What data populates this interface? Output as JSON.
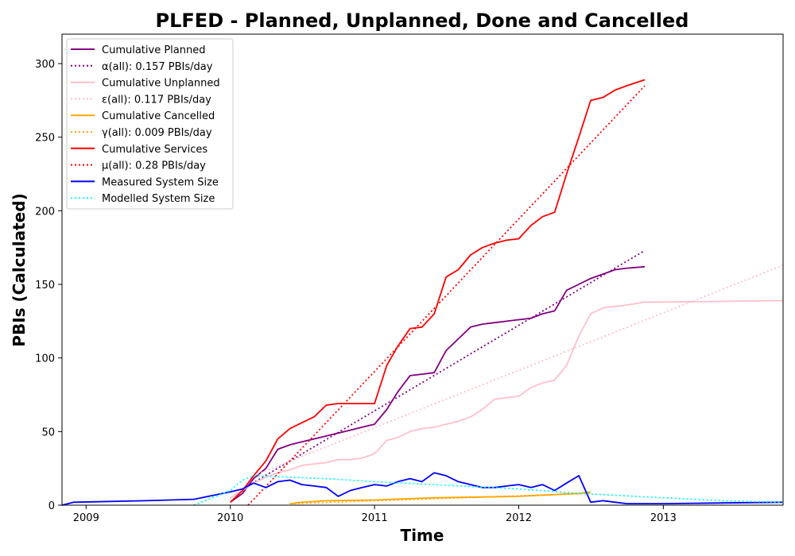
{
  "chart_data": {
    "type": "line",
    "title": "PLFED - Planned, Unplanned, Done  and Cancelled",
    "xlabel": "Time",
    "ylabel": "PBIs (Calculated)",
    "xlim": [
      "2008-11-01",
      "2013-10-31"
    ],
    "ylim": [
      0,
      320
    ],
    "x_ticks": [
      "2009",
      "2010",
      "2011",
      "2012",
      "2013"
    ],
    "x_tick_dates": [
      "2009-01-01",
      "2010-01-01",
      "2011-01-01",
      "2012-01-01",
      "2013-01-01"
    ],
    "y_ticks": [
      0,
      50,
      100,
      150,
      200,
      250,
      300
    ],
    "grid": false,
    "legend_position": "top-left",
    "series": [
      {
        "name": "Cumulative Planned",
        "color": "#800080",
        "style": "solid",
        "points": [
          [
            "2010-01-01",
            2
          ],
          [
            "2010-02-01",
            8
          ],
          [
            "2010-03-01",
            18
          ],
          [
            "2010-04-01",
            25
          ],
          [
            "2010-05-01",
            38
          ],
          [
            "2010-06-01",
            41
          ],
          [
            "2010-07-01",
            43
          ],
          [
            "2010-08-01",
            45
          ],
          [
            "2010-09-01",
            47
          ],
          [
            "2010-10-01",
            49
          ],
          [
            "2010-11-01",
            51
          ],
          [
            "2010-12-01",
            53
          ],
          [
            "2011-01-01",
            55
          ],
          [
            "2011-02-01",
            65
          ],
          [
            "2011-03-01",
            77
          ],
          [
            "2011-04-01",
            88
          ],
          [
            "2011-05-01",
            89
          ],
          [
            "2011-06-01",
            90
          ],
          [
            "2011-07-01",
            105
          ],
          [
            "2011-08-01",
            113
          ],
          [
            "2011-09-01",
            121
          ],
          [
            "2011-10-01",
            123
          ],
          [
            "2011-11-01",
            124
          ],
          [
            "2011-12-01",
            125
          ],
          [
            "2012-01-01",
            126
          ],
          [
            "2012-02-01",
            127
          ],
          [
            "2012-03-01",
            130
          ],
          [
            "2012-04-01",
            132
          ],
          [
            "2012-05-01",
            146
          ],
          [
            "2012-06-01",
            150
          ],
          [
            "2012-07-01",
            154
          ],
          [
            "2012-08-01",
            157
          ],
          [
            "2012-09-01",
            160
          ],
          [
            "2012-10-01",
            161
          ],
          [
            "2012-11-15",
            162
          ]
        ]
      },
      {
        "name": "α(all): 0.157 PBIs/day",
        "color": "#800080",
        "style": "dotted",
        "points": [
          [
            "2010-03-05",
            16
          ],
          [
            "2012-11-15",
            173
          ]
        ]
      },
      {
        "name": "Cumulative Unplanned",
        "color": "#ffc0cb",
        "style": "solid",
        "points": [
          [
            "2010-01-01",
            5
          ],
          [
            "2010-02-01",
            10
          ],
          [
            "2010-03-01",
            15
          ],
          [
            "2010-04-01",
            19
          ],
          [
            "2010-05-01",
            22
          ],
          [
            "2010-06-01",
            24
          ],
          [
            "2010-07-01",
            27
          ],
          [
            "2010-08-01",
            28
          ],
          [
            "2010-09-01",
            29
          ],
          [
            "2010-10-01",
            31
          ],
          [
            "2010-11-01",
            31
          ],
          [
            "2010-12-01",
            32
          ],
          [
            "2011-01-01",
            35
          ],
          [
            "2011-02-01",
            44
          ],
          [
            "2011-03-01",
            46
          ],
          [
            "2011-04-01",
            50
          ],
          [
            "2011-05-01",
            52
          ],
          [
            "2011-06-01",
            53
          ],
          [
            "2011-07-01",
            55
          ],
          [
            "2011-08-01",
            57
          ],
          [
            "2011-09-01",
            60
          ],
          [
            "2011-10-01",
            65
          ],
          [
            "2011-11-01",
            72
          ],
          [
            "2011-12-01",
            73
          ],
          [
            "2012-01-01",
            74
          ],
          [
            "2012-02-01",
            80
          ],
          [
            "2012-03-01",
            83
          ],
          [
            "2012-04-01",
            85
          ],
          [
            "2012-05-01",
            95
          ],
          [
            "2012-06-01",
            115
          ],
          [
            "2012-07-01",
            130
          ],
          [
            "2012-08-01",
            134
          ],
          [
            "2012-09-01",
            135
          ],
          [
            "2012-10-01",
            136
          ],
          [
            "2012-11-15",
            138
          ],
          [
            "2013-01-01",
            138
          ],
          [
            "2013-10-31",
            139
          ]
        ]
      },
      {
        "name": "ε(all): 0.117 PBIs/day",
        "color": "#ffc0cb",
        "style": "dotted",
        "points": [
          [
            "2010-03-01",
            20
          ],
          [
            "2013-10-31",
            163
          ]
        ]
      },
      {
        "name": "Cumulative Cancelled",
        "color": "#ffa500",
        "style": "solid",
        "points": [
          [
            "2010-06-01",
            1
          ],
          [
            "2010-07-01",
            2
          ],
          [
            "2010-09-01",
            3
          ],
          [
            "2011-01-01",
            3.5
          ],
          [
            "2011-06-01",
            5
          ],
          [
            "2012-01-01",
            6
          ],
          [
            "2012-06-01",
            8
          ],
          [
            "2012-07-01",
            9
          ]
        ]
      },
      {
        "name": "γ(all): 0.009 PBIs/day",
        "color": "#ffa500",
        "style": "dotted",
        "points": [
          [
            "2010-06-01",
            1
          ],
          [
            "2012-07-01",
            8
          ]
        ]
      },
      {
        "name": "Cumulative Services",
        "color": "#ff0000",
        "style": "solid",
        "points": [
          [
            "2010-01-01",
            2
          ],
          [
            "2010-02-01",
            10
          ],
          [
            "2010-03-01",
            20
          ],
          [
            "2010-04-01",
            30
          ],
          [
            "2010-05-01",
            45
          ],
          [
            "2010-06-01",
            52
          ],
          [
            "2010-07-01",
            56
          ],
          [
            "2010-08-01",
            60
          ],
          [
            "2010-09-01",
            68
          ],
          [
            "2010-10-01",
            69
          ],
          [
            "2010-11-01",
            69
          ],
          [
            "2010-12-01",
            69
          ],
          [
            "2011-01-01",
            69
          ],
          [
            "2011-02-01",
            95
          ],
          [
            "2011-03-01",
            108
          ],
          [
            "2011-04-01",
            120
          ],
          [
            "2011-05-01",
            121
          ],
          [
            "2011-06-01",
            130
          ],
          [
            "2011-07-01",
            155
          ],
          [
            "2011-08-01",
            160
          ],
          [
            "2011-09-01",
            170
          ],
          [
            "2011-10-01",
            175
          ],
          [
            "2011-11-01",
            178
          ],
          [
            "2011-12-01",
            180
          ],
          [
            "2012-01-01",
            181
          ],
          [
            "2012-02-01",
            190
          ],
          [
            "2012-03-01",
            196
          ],
          [
            "2012-04-01",
            199
          ],
          [
            "2012-05-01",
            225
          ],
          [
            "2012-06-01",
            250
          ],
          [
            "2012-07-01",
            275
          ],
          [
            "2012-08-01",
            277
          ],
          [
            "2012-09-01",
            282
          ],
          [
            "2012-10-01",
            285
          ],
          [
            "2012-11-15",
            289
          ]
        ]
      },
      {
        "name": "μ(all): 0.28 PBIs/day",
        "color": "#ff0000",
        "style": "dotted",
        "points": [
          [
            "2010-02-15",
            0
          ],
          [
            "2012-11-15",
            285
          ]
        ]
      },
      {
        "name": "Measured System Size",
        "color": "#0000ff",
        "style": "solid",
        "points": [
          [
            "2008-11-01",
            0
          ],
          [
            "2008-12-01",
            2
          ],
          [
            "2009-06-01",
            3
          ],
          [
            "2009-10-01",
            4
          ],
          [
            "2010-01-01",
            9
          ],
          [
            "2010-02-01",
            11
          ],
          [
            "2010-03-01",
            15
          ],
          [
            "2010-04-01",
            12
          ],
          [
            "2010-05-01",
            16
          ],
          [
            "2010-06-01",
            17
          ],
          [
            "2010-07-01",
            14
          ],
          [
            "2010-08-01",
            13
          ],
          [
            "2010-09-01",
            12
          ],
          [
            "2010-10-01",
            6
          ],
          [
            "2010-11-01",
            10
          ],
          [
            "2010-12-01",
            12
          ],
          [
            "2011-01-01",
            14
          ],
          [
            "2011-02-01",
            13
          ],
          [
            "2011-03-01",
            16
          ],
          [
            "2011-04-01",
            18
          ],
          [
            "2011-05-01",
            16
          ],
          [
            "2011-06-01",
            22
          ],
          [
            "2011-07-01",
            20
          ],
          [
            "2011-08-01",
            16
          ],
          [
            "2011-09-01",
            14
          ],
          [
            "2011-10-01",
            12
          ],
          [
            "2011-11-01",
            12
          ],
          [
            "2011-12-01",
            13
          ],
          [
            "2012-01-01",
            14
          ],
          [
            "2012-02-01",
            12
          ],
          [
            "2012-03-01",
            14
          ],
          [
            "2012-04-01",
            10
          ],
          [
            "2012-05-01",
            15
          ],
          [
            "2012-06-01",
            20
          ],
          [
            "2012-07-01",
            2
          ],
          [
            "2012-08-01",
            3
          ],
          [
            "2012-09-01",
            2
          ],
          [
            "2012-10-01",
            1
          ],
          [
            "2013-01-01",
            1
          ],
          [
            "2013-10-31",
            2
          ]
        ]
      },
      {
        "name": "Modelled System Size",
        "color": "#00ffff",
        "style": "dotted",
        "points": [
          [
            "2009-10-01",
            0
          ],
          [
            "2010-01-01",
            10
          ],
          [
            "2010-02-01",
            17
          ],
          [
            "2010-03-01",
            20
          ],
          [
            "2010-06-01",
            19
          ],
          [
            "2010-09-01",
            18
          ],
          [
            "2011-01-01",
            16
          ],
          [
            "2011-06-01",
            14
          ],
          [
            "2012-01-01",
            11
          ],
          [
            "2012-06-01",
            8
          ],
          [
            "2013-01-01",
            5
          ],
          [
            "2013-06-01",
            3
          ],
          [
            "2013-10-31",
            2
          ]
        ]
      }
    ]
  }
}
